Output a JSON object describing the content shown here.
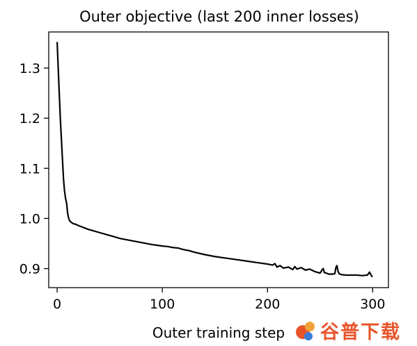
{
  "chart_data": {
    "type": "line",
    "title": "Outer objective (last 200 inner losses)",
    "xlabel": "Outer training step",
    "ylabel": "",
    "xlim": [
      -8,
      315
    ],
    "ylim": [
      0.862,
      1.372
    ],
    "xticks": [
      0,
      100,
      200,
      300
    ],
    "xtick_labels": [
      "0",
      "100",
      "200",
      "300"
    ],
    "yticks": [
      0.9,
      1.0,
      1.1,
      1.2,
      1.3
    ],
    "ytick_labels": [
      "0.9",
      "1.0",
      "1.1",
      "1.2",
      "1.3"
    ],
    "grid": false,
    "line_color": "#000000",
    "series": [
      {
        "x": [
          0,
          1,
          2,
          3,
          4,
          5,
          6,
          7,
          8,
          9,
          10,
          11,
          12,
          13,
          15,
          18,
          20,
          25,
          30,
          35,
          40,
          45,
          50,
          55,
          60,
          70,
          80,
          90,
          100,
          105,
          110,
          115,
          120,
          125,
          130,
          140,
          150,
          160,
          170,
          180,
          190,
          200,
          205,
          207,
          209,
          212,
          215,
          220,
          224,
          226,
          228,
          232,
          236,
          240,
          245,
          250,
          252,
          253,
          254,
          256,
          258,
          262,
          264,
          265,
          266,
          267,
          268,
          270,
          275,
          280,
          285,
          290,
          295,
          297,
          298,
          299,
          300
        ],
        "y": [
          1.352,
          1.3,
          1.25,
          1.2,
          1.16,
          1.12,
          1.08,
          1.055,
          1.04,
          1.03,
          1.01,
          1.0,
          0.995,
          0.993,
          0.99,
          0.988,
          0.986,
          0.982,
          0.978,
          0.975,
          0.972,
          0.969,
          0.966,
          0.963,
          0.96,
          0.956,
          0.952,
          0.948,
          0.945,
          0.944,
          0.942,
          0.941,
          0.938,
          0.936,
          0.933,
          0.928,
          0.924,
          0.921,
          0.918,
          0.915,
          0.912,
          0.909,
          0.907,
          0.91,
          0.903,
          0.906,
          0.901,
          0.903,
          0.898,
          0.904,
          0.899,
          0.902,
          0.897,
          0.899,
          0.894,
          0.891,
          0.898,
          0.9,
          0.892,
          0.891,
          0.889,
          0.889,
          0.89,
          0.902,
          0.906,
          0.895,
          0.89,
          0.888,
          0.887,
          0.887,
          0.887,
          0.886,
          0.887,
          0.893,
          0.889,
          0.885,
          0.884
        ]
      }
    ]
  },
  "watermark": {
    "text": "谷普下载",
    "colors": [
      "#e8542a",
      "#f2a33a",
      "#3b7dd8"
    ]
  }
}
